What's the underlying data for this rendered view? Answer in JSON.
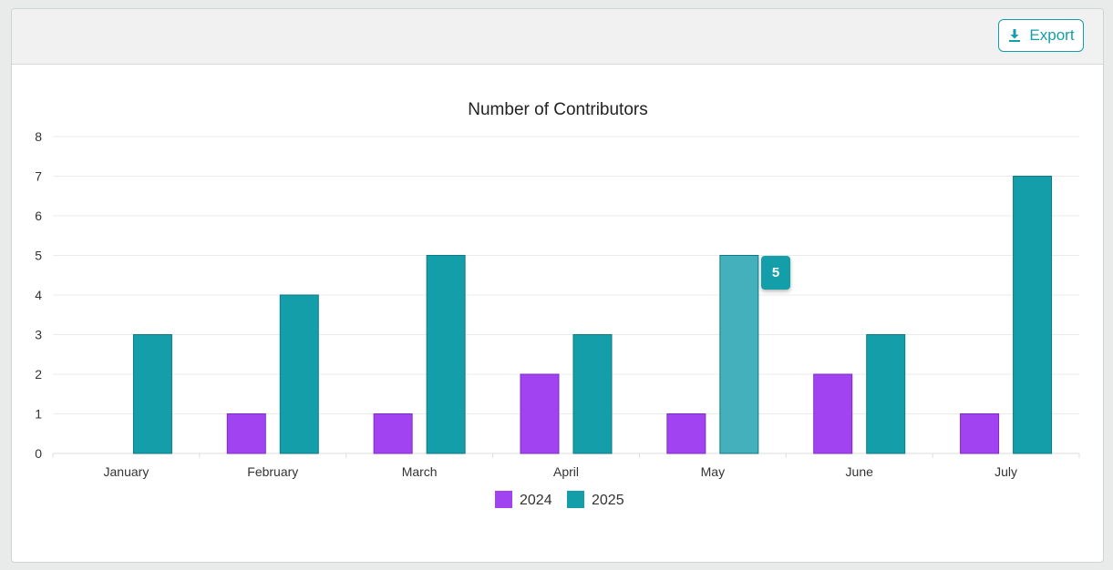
{
  "toolbar": {
    "export_label": "Export",
    "export_icon": "download-icon"
  },
  "tooltip": {
    "category": "May",
    "series": "2025",
    "value": "5"
  },
  "colors": {
    "series_2024": "#a243f2",
    "series_2025": "#149ea9",
    "series_2025_hover": "#44b0bb",
    "grid": "#ebebeb",
    "axis_text": "#333333"
  },
  "chart_data": {
    "type": "bar",
    "title": "Number of Contributors",
    "xlabel": "",
    "ylabel": "",
    "categories": [
      "January",
      "February",
      "March",
      "April",
      "May",
      "June",
      "July"
    ],
    "series": [
      {
        "name": "2024",
        "values": [
          0,
          1,
          1,
          2,
          1,
          2,
          1
        ]
      },
      {
        "name": "2025",
        "values": [
          3,
          4,
          5,
          3,
          5,
          3,
          7
        ]
      }
    ],
    "ylim": [
      0,
      8
    ],
    "yticks": [
      0,
      1,
      2,
      3,
      4,
      5,
      6,
      7,
      8
    ],
    "grid": true,
    "legend": "bottom-center",
    "highlighted": {
      "category": "May",
      "series": "2025"
    }
  }
}
